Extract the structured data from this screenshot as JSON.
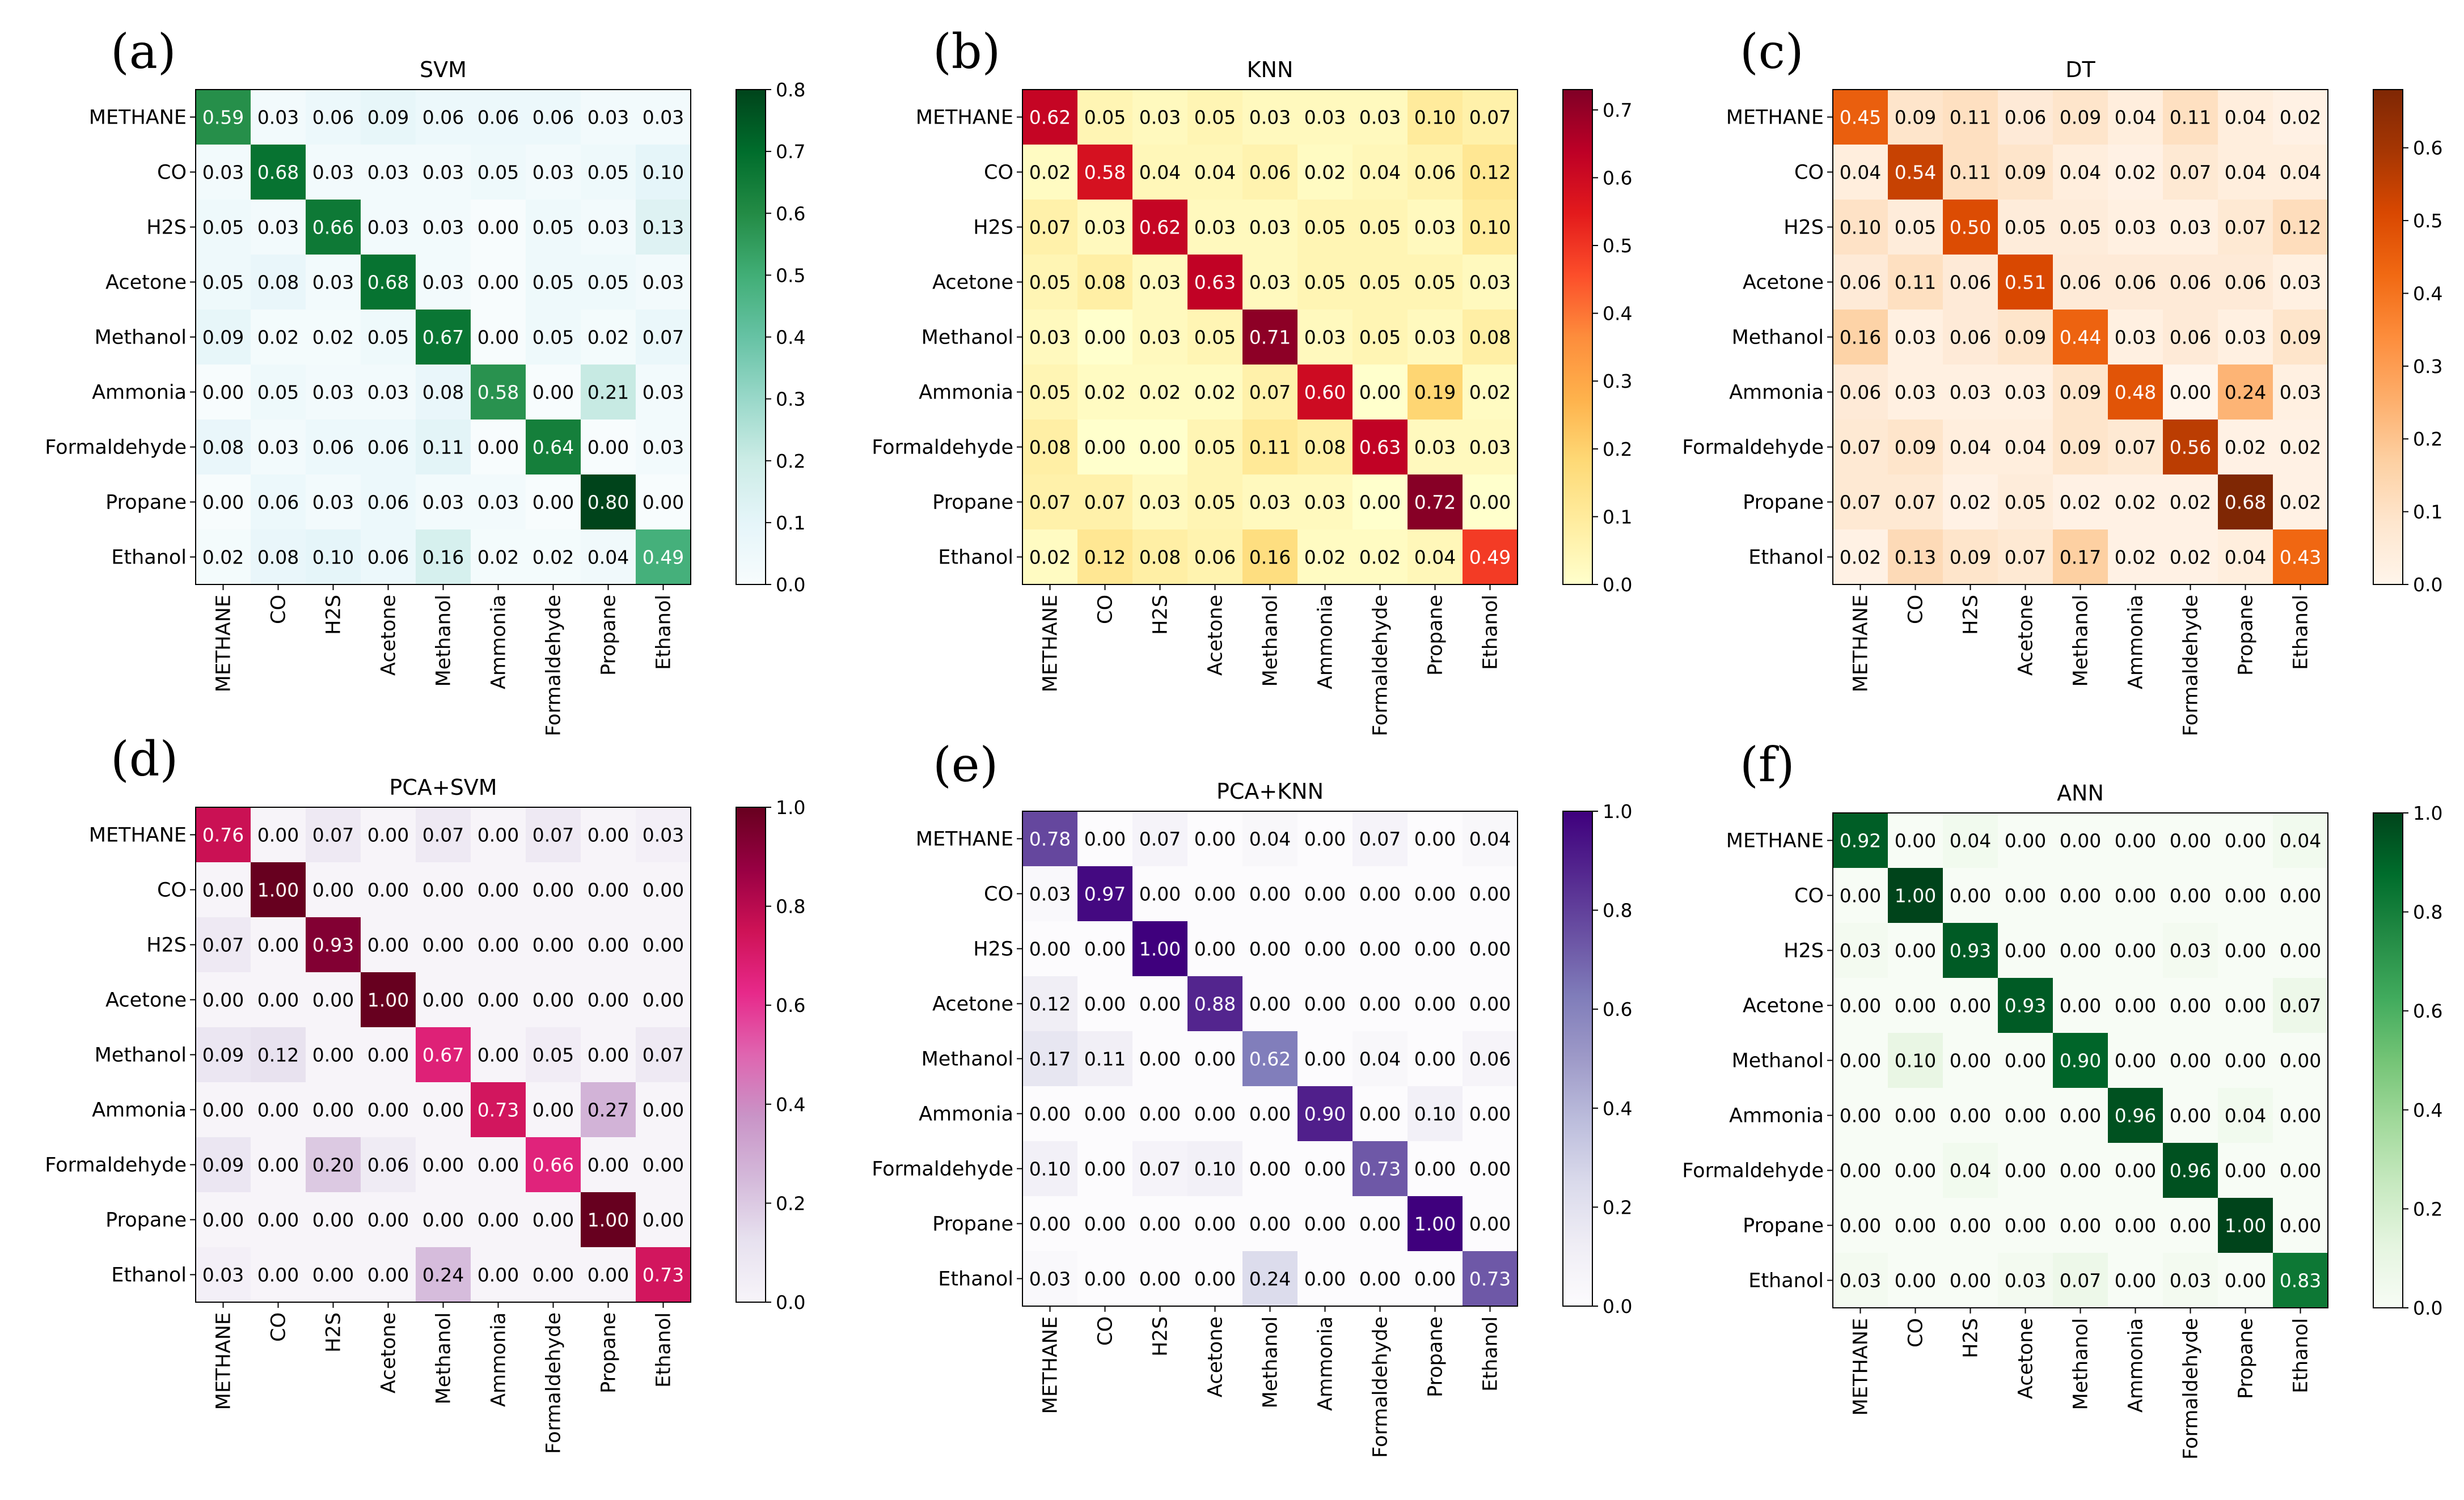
{
  "chart_data": [
    {
      "type": "heatmap",
      "panel_label": "(a)",
      "title": "SVM",
      "row_labels": [
        "METHANE",
        "CO",
        "H2S",
        "Acetone",
        "Methanol",
        "Ammonia",
        "Formaldehyde",
        "Propane",
        "Ethanol"
      ],
      "col_labels": [
        "METHANE",
        "CO",
        "H2S",
        "Acetone",
        "Methanol",
        "Ammonia",
        "Formaldehyde",
        "Propane",
        "Ethanol"
      ],
      "values": [
        [
          "0.59",
          "0.03",
          "0.06",
          "0.09",
          "0.06",
          "0.06",
          "0.06",
          "0.03",
          "0.03"
        ],
        [
          "0.03",
          "0.68",
          "0.03",
          "0.03",
          "0.03",
          "0.05",
          "0.03",
          "0.05",
          "0.10"
        ],
        [
          "0.05",
          "0.03",
          "0.66",
          "0.03",
          "0.03",
          "0.00",
          "0.05",
          "0.03",
          "0.13"
        ],
        [
          "0.05",
          "0.08",
          "0.03",
          "0.68",
          "0.03",
          "0.00",
          "0.05",
          "0.05",
          "0.03"
        ],
        [
          "0.09",
          "0.02",
          "0.02",
          "0.05",
          "0.67",
          "0.00",
          "0.05",
          "0.02",
          "0.07"
        ],
        [
          "0.00",
          "0.05",
          "0.03",
          "0.03",
          "0.08",
          "0.58",
          "0.00",
          "0.21",
          "0.03"
        ],
        [
          "0.08",
          "0.03",
          "0.06",
          "0.06",
          "0.11",
          "0.00",
          "0.64",
          "0.00",
          "0.03"
        ],
        [
          "0.00",
          "0.06",
          "0.03",
          "0.06",
          "0.03",
          "0.03",
          "0.00",
          "0.80",
          "0.00"
        ],
        [
          "0.02",
          "0.08",
          "0.10",
          "0.06",
          "0.16",
          "0.02",
          "0.02",
          "0.04",
          "0.49"
        ]
      ],
      "colorbar": {
        "colormap": "BuGn",
        "vmin": 0.0,
        "vmax": 0.8,
        "ticks": [
          "0.0",
          "0.1",
          "0.2",
          "0.3",
          "0.4",
          "0.5",
          "0.6",
          "0.7",
          "0.8"
        ]
      }
    },
    {
      "type": "heatmap",
      "panel_label": "(b)",
      "title": "KNN",
      "row_labels": [
        "METHANE",
        "CO",
        "H2S",
        "Acetone",
        "Methanol",
        "Ammonia",
        "Formaldehyde",
        "Propane",
        "Ethanol"
      ],
      "col_labels": [
        "METHANE",
        "CO",
        "H2S",
        "Acetone",
        "Methanol",
        "Ammonia",
        "Formaldehyde",
        "Propane",
        "Ethanol"
      ],
      "values": [
        [
          "0.62",
          "0.05",
          "0.03",
          "0.05",
          "0.03",
          "0.03",
          "0.03",
          "0.10",
          "0.07"
        ],
        [
          "0.02",
          "0.58",
          "0.04",
          "0.04",
          "0.06",
          "0.02",
          "0.04",
          "0.06",
          "0.12"
        ],
        [
          "0.07",
          "0.03",
          "0.62",
          "0.03",
          "0.03",
          "0.05",
          "0.05",
          "0.03",
          "0.10"
        ],
        [
          "0.05",
          "0.08",
          "0.03",
          "0.63",
          "0.03",
          "0.05",
          "0.05",
          "0.05",
          "0.03"
        ],
        [
          "0.03",
          "0.00",
          "0.03",
          "0.05",
          "0.71",
          "0.03",
          "0.05",
          "0.03",
          "0.08"
        ],
        [
          "0.05",
          "0.02",
          "0.02",
          "0.02",
          "0.07",
          "0.60",
          "0.00",
          "0.19",
          "0.02"
        ],
        [
          "0.08",
          "0.00",
          "0.00",
          "0.05",
          "0.11",
          "0.08",
          "0.63",
          "0.03",
          "0.03"
        ],
        [
          "0.07",
          "0.07",
          "0.03",
          "0.05",
          "0.03",
          "0.03",
          "0.00",
          "0.72",
          "0.00"
        ],
        [
          "0.02",
          "0.12",
          "0.08",
          "0.06",
          "0.16",
          "0.02",
          "0.02",
          "0.04",
          "0.49"
        ]
      ],
      "colorbar": {
        "colormap": "YlOrRd",
        "vmin": 0.0,
        "vmax": 0.73,
        "ticks": [
          "0.0",
          "0.1",
          "0.2",
          "0.3",
          "0.4",
          "0.5",
          "0.6",
          "0.7"
        ]
      }
    },
    {
      "type": "heatmap",
      "panel_label": "(c)",
      "title": "DT",
      "row_labels": [
        "METHANE",
        "CO",
        "H2S",
        "Acetone",
        "Methanol",
        "Ammonia",
        "Formaldehyde",
        "Propane",
        "Ethanol"
      ],
      "col_labels": [
        "METHANE",
        "CO",
        "H2S",
        "Acetone",
        "Methanol",
        "Ammonia",
        "Formaldehyde",
        "Propane",
        "Ethanol"
      ],
      "values": [
        [
          "0.45",
          "0.09",
          "0.11",
          "0.06",
          "0.09",
          "0.04",
          "0.11",
          "0.04",
          "0.02"
        ],
        [
          "0.04",
          "0.54",
          "0.11",
          "0.09",
          "0.04",
          "0.02",
          "0.07",
          "0.04",
          "0.04"
        ],
        [
          "0.10",
          "0.05",
          "0.50",
          "0.05",
          "0.05",
          "0.03",
          "0.03",
          "0.07",
          "0.12"
        ],
        [
          "0.06",
          "0.11",
          "0.06",
          "0.51",
          "0.06",
          "0.06",
          "0.06",
          "0.06",
          "0.03"
        ],
        [
          "0.16",
          "0.03",
          "0.06",
          "0.09",
          "0.44",
          "0.03",
          "0.06",
          "0.03",
          "0.09"
        ],
        [
          "0.06",
          "0.03",
          "0.03",
          "0.03",
          "0.09",
          "0.48",
          "0.00",
          "0.24",
          "0.03"
        ],
        [
          "0.07",
          "0.09",
          "0.04",
          "0.04",
          "0.09",
          "0.07",
          "0.56",
          "0.02",
          "0.02"
        ],
        [
          "0.07",
          "0.07",
          "0.02",
          "0.05",
          "0.02",
          "0.02",
          "0.02",
          "0.68",
          "0.02"
        ],
        [
          "0.02",
          "0.13",
          "0.09",
          "0.07",
          "0.17",
          "0.02",
          "0.02",
          "0.04",
          "0.43"
        ]
      ],
      "colorbar": {
        "colormap": "Oranges",
        "vmin": 0.0,
        "vmax": 0.68,
        "ticks": [
          "0.0",
          "0.1",
          "0.2",
          "0.3",
          "0.4",
          "0.5",
          "0.6"
        ]
      }
    },
    {
      "type": "heatmap",
      "panel_label": "(d)",
      "title": "PCA+SVM",
      "row_labels": [
        "METHANE",
        "CO",
        "H2S",
        "Acetone",
        "Methanol",
        "Ammonia",
        "Formaldehyde",
        "Propane",
        "Ethanol"
      ],
      "col_labels": [
        "METHANE",
        "CO",
        "H2S",
        "Acetone",
        "Methanol",
        "Ammonia",
        "Formaldehyde",
        "Propane",
        "Ethanol"
      ],
      "values": [
        [
          "0.76",
          "0.00",
          "0.07",
          "0.00",
          "0.07",
          "0.00",
          "0.07",
          "0.00",
          "0.03"
        ],
        [
          "0.00",
          "1.00",
          "0.00",
          "0.00",
          "0.00",
          "0.00",
          "0.00",
          "0.00",
          "0.00"
        ],
        [
          "0.07",
          "0.00",
          "0.93",
          "0.00",
          "0.00",
          "0.00",
          "0.00",
          "0.00",
          "0.00"
        ],
        [
          "0.00",
          "0.00",
          "0.00",
          "1.00",
          "0.00",
          "0.00",
          "0.00",
          "0.00",
          "0.00"
        ],
        [
          "0.09",
          "0.12",
          "0.00",
          "0.00",
          "0.67",
          "0.00",
          "0.05",
          "0.00",
          "0.07"
        ],
        [
          "0.00",
          "0.00",
          "0.00",
          "0.00",
          "0.00",
          "0.73",
          "0.00",
          "0.27",
          "0.00"
        ],
        [
          "0.09",
          "0.00",
          "0.20",
          "0.06",
          "0.00",
          "0.00",
          "0.66",
          "0.00",
          "0.00"
        ],
        [
          "0.00",
          "0.00",
          "0.00",
          "0.00",
          "0.00",
          "0.00",
          "0.00",
          "1.00",
          "0.00"
        ],
        [
          "0.03",
          "0.00",
          "0.00",
          "0.00",
          "0.24",
          "0.00",
          "0.00",
          "0.00",
          "0.73"
        ]
      ],
      "colorbar": {
        "colormap": "PuRd",
        "vmin": 0.0,
        "vmax": 1.0,
        "ticks": [
          "0.0",
          "0.2",
          "0.4",
          "0.6",
          "0.8",
          "1.0"
        ]
      }
    },
    {
      "type": "heatmap",
      "panel_label": "(e)",
      "title": "PCA+KNN",
      "row_labels": [
        "METHANE",
        "CO",
        "H2S",
        "Acetone",
        "Methanol",
        "Ammonia",
        "Formaldehyde",
        "Propane",
        "Ethanol"
      ],
      "col_labels": [
        "METHANE",
        "CO",
        "H2S",
        "Acetone",
        "Methanol",
        "Ammonia",
        "Formaldehyde",
        "Propane",
        "Ethanol"
      ],
      "values": [
        [
          "0.78",
          "0.00",
          "0.07",
          "0.00",
          "0.04",
          "0.00",
          "0.07",
          "0.00",
          "0.04"
        ],
        [
          "0.03",
          "0.97",
          "0.00",
          "0.00",
          "0.00",
          "0.00",
          "0.00",
          "0.00",
          "0.00"
        ],
        [
          "0.00",
          "0.00",
          "1.00",
          "0.00",
          "0.00",
          "0.00",
          "0.00",
          "0.00",
          "0.00"
        ],
        [
          "0.12",
          "0.00",
          "0.00",
          "0.88",
          "0.00",
          "0.00",
          "0.00",
          "0.00",
          "0.00"
        ],
        [
          "0.17",
          "0.11",
          "0.00",
          "0.00",
          "0.62",
          "0.00",
          "0.04",
          "0.00",
          "0.06"
        ],
        [
          "0.00",
          "0.00",
          "0.00",
          "0.00",
          "0.00",
          "0.90",
          "0.00",
          "0.10",
          "0.00"
        ],
        [
          "0.10",
          "0.00",
          "0.07",
          "0.10",
          "0.00",
          "0.00",
          "0.73",
          "0.00",
          "0.00"
        ],
        [
          "0.00",
          "0.00",
          "0.00",
          "0.00",
          "0.00",
          "0.00",
          "0.00",
          "1.00",
          "0.00"
        ],
        [
          "0.03",
          "0.00",
          "0.00",
          "0.00",
          "0.24",
          "0.00",
          "0.00",
          "0.00",
          "0.73"
        ]
      ],
      "colorbar": {
        "colormap": "Purples",
        "vmin": 0.0,
        "vmax": 1.0,
        "ticks": [
          "0.0",
          "0.2",
          "0.4",
          "0.6",
          "0.8",
          "1.0"
        ]
      }
    },
    {
      "type": "heatmap",
      "panel_label": "(f)",
      "title": "ANN",
      "row_labels": [
        "METHANE",
        "CO",
        "H2S",
        "Acetone",
        "Methanol",
        "Ammonia",
        "Formaldehyde",
        "Propane",
        "Ethanol"
      ],
      "col_labels": [
        "METHANE",
        "CO",
        "H2S",
        "Acetone",
        "Methanol",
        "Ammonia",
        "Formaldehyde",
        "Propane",
        "Ethanol"
      ],
      "values": [
        [
          "0.92",
          "0.00",
          "0.04",
          "0.00",
          "0.00",
          "0.00",
          "0.00",
          "0.00",
          "0.04"
        ],
        [
          "0.00",
          "1.00",
          "0.00",
          "0.00",
          "0.00",
          "0.00",
          "0.00",
          "0.00",
          "0.00"
        ],
        [
          "0.03",
          "0.00",
          "0.93",
          "0.00",
          "0.00",
          "0.00",
          "0.03",
          "0.00",
          "0.00"
        ],
        [
          "0.00",
          "0.00",
          "0.00",
          "0.93",
          "0.00",
          "0.00",
          "0.00",
          "0.00",
          "0.07"
        ],
        [
          "0.00",
          "0.10",
          "0.00",
          "0.00",
          "0.90",
          "0.00",
          "0.00",
          "0.00",
          "0.00"
        ],
        [
          "0.00",
          "0.00",
          "0.00",
          "0.00",
          "0.00",
          "0.96",
          "0.00",
          "0.04",
          "0.00"
        ],
        [
          "0.00",
          "0.00",
          "0.04",
          "0.00",
          "0.00",
          "0.00",
          "0.96",
          "0.00",
          "0.00"
        ],
        [
          "0.00",
          "0.00",
          "0.00",
          "0.00",
          "0.00",
          "0.00",
          "0.00",
          "1.00",
          "0.00"
        ],
        [
          "0.03",
          "0.00",
          "0.00",
          "0.03",
          "0.07",
          "0.00",
          "0.03",
          "0.00",
          "0.83"
        ]
      ],
      "colorbar": {
        "colormap": "Greens",
        "vmin": 0.0,
        "vmax": 1.0,
        "ticks": [
          "0.0",
          "0.2",
          "0.4",
          "0.6",
          "0.8",
          "1.0"
        ]
      }
    }
  ],
  "colormaps": {
    "BuGn": [
      "#f7fcfd",
      "#e5f5f9",
      "#ccece6",
      "#99d8c9",
      "#66c2a4",
      "#41ae76",
      "#238b45",
      "#006d2c",
      "#00441b"
    ],
    "YlOrRd": [
      "#ffffcc",
      "#ffeda0",
      "#fed976",
      "#feb24c",
      "#fd8d3c",
      "#fc4e2a",
      "#e31a1c",
      "#bd0026",
      "#800026"
    ],
    "Oranges": [
      "#fff5eb",
      "#fee6ce",
      "#fdd0a2",
      "#fdae6b",
      "#fd8d3c",
      "#f16913",
      "#d94801",
      "#a63603",
      "#7f2704"
    ],
    "PuRd": [
      "#f7f4f9",
      "#e7e1ef",
      "#d4b9da",
      "#c994c7",
      "#df65b0",
      "#e7298a",
      "#ce1256",
      "#980043",
      "#67001f"
    ],
    "Purples": [
      "#fcfbfd",
      "#efedf5",
      "#dadaeb",
      "#bcbddc",
      "#9e9ac8",
      "#807dba",
      "#6a51a3",
      "#54278f",
      "#3f007d"
    ],
    "Greens": [
      "#f7fcf5",
      "#e5f5e0",
      "#c7e9c0",
      "#a1d99b",
      "#74c476",
      "#41ab5d",
      "#238b45",
      "#006d2c",
      "#00441b"
    ]
  }
}
